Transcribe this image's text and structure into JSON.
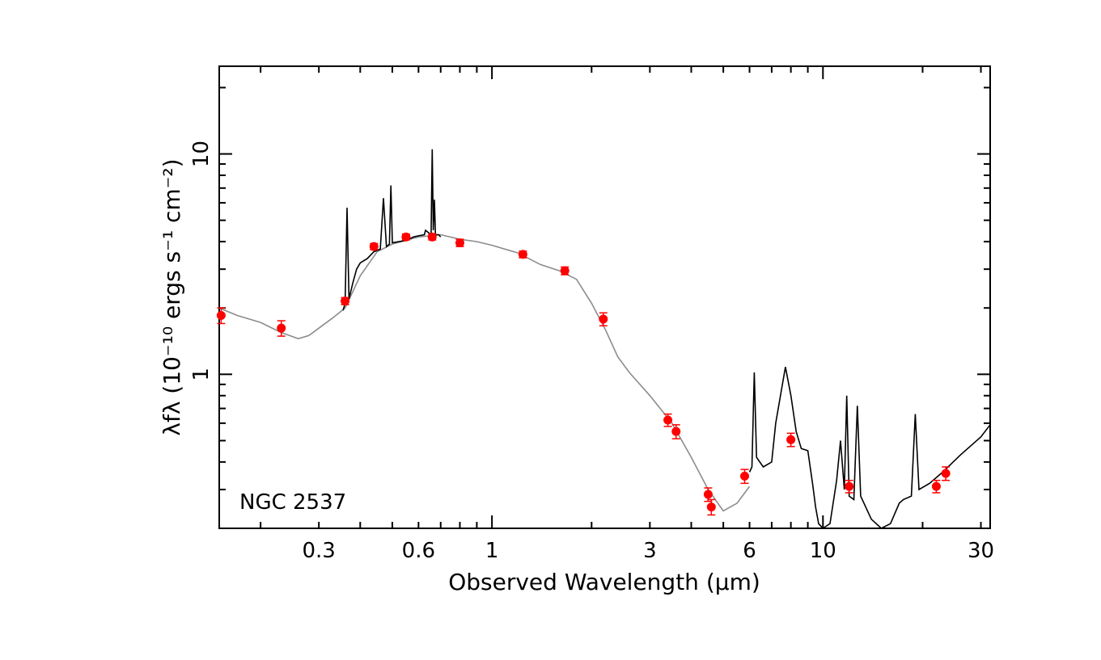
{
  "chart_data": {
    "type": "scatter",
    "title": "",
    "annotation": "NGC 2537",
    "xlabel": "Observed Wavelength (μm)",
    "ylabel": "λfλ (10⁻¹⁰ ergs s⁻¹ cm⁻²)",
    "x_scale": "log",
    "y_scale": "log",
    "xlim": [
      0.15,
      32
    ],
    "ylim": [
      0.2,
      25
    ],
    "x_tick_labels": [
      "0.3",
      "0.6",
      "1",
      "3",
      "6",
      "10",
      "30"
    ],
    "y_tick_labels": [
      "1",
      "10"
    ],
    "grid": false,
    "colors": {
      "photometry": "#ff0000",
      "model": "#8c8c8c",
      "spectrum": "#000000"
    },
    "series": [
      {
        "kind": "photometry",
        "points": [
          {
            "x": 0.152,
            "y": 1.85,
            "err": 0.15
          },
          {
            "x": 0.231,
            "y": 1.62,
            "err": 0.13
          },
          {
            "x": 0.36,
            "y": 2.15,
            "err": 0.08
          },
          {
            "x": 0.44,
            "y": 3.8,
            "err": 0.12
          },
          {
            "x": 0.55,
            "y": 4.2,
            "err": 0.13
          },
          {
            "x": 0.66,
            "y": 4.2,
            "err": 0.13
          },
          {
            "x": 0.8,
            "y": 3.95,
            "err": 0.15
          },
          {
            "x": 1.24,
            "y": 3.5,
            "err": 0.12
          },
          {
            "x": 1.66,
            "y": 2.95,
            "err": 0.12
          },
          {
            "x": 2.17,
            "y": 1.78,
            "err": 0.12
          },
          {
            "x": 3.4,
            "y": 0.62,
            "err": 0.04
          },
          {
            "x": 3.6,
            "y": 0.55,
            "err": 0.04
          },
          {
            "x": 4.5,
            "y": 0.285,
            "err": 0.02
          },
          {
            "x": 4.6,
            "y": 0.25,
            "err": 0.02
          },
          {
            "x": 5.8,
            "y": 0.345,
            "err": 0.025
          },
          {
            "x": 8.0,
            "y": 0.505,
            "err": 0.035
          },
          {
            "x": 12.0,
            "y": 0.31,
            "err": 0.02
          },
          {
            "x": 22.0,
            "y": 0.31,
            "err": 0.02
          },
          {
            "x": 23.5,
            "y": 0.355,
            "err": 0.025
          }
        ]
      },
      {
        "kind": "model",
        "points": [
          [
            0.15,
            2.0
          ],
          [
            0.17,
            1.85
          ],
          [
            0.2,
            1.72
          ],
          [
            0.23,
            1.55
          ],
          [
            0.26,
            1.45
          ],
          [
            0.28,
            1.5
          ],
          [
            0.3,
            1.62
          ],
          [
            0.33,
            1.8
          ],
          [
            0.36,
            2.0
          ],
          [
            0.4,
            2.8
          ],
          [
            0.45,
            3.6
          ],
          [
            0.5,
            3.9
          ],
          [
            0.6,
            4.2
          ],
          [
            0.7,
            4.3
          ],
          [
            0.8,
            4.1
          ],
          [
            0.9,
            4.0
          ],
          [
            1.0,
            3.85
          ],
          [
            1.2,
            3.55
          ],
          [
            1.4,
            3.15
          ],
          [
            1.6,
            2.95
          ],
          [
            1.8,
            2.7
          ],
          [
            2.0,
            2.1
          ],
          [
            2.2,
            1.6
          ],
          [
            2.4,
            1.2
          ],
          [
            2.6,
            1.02
          ],
          [
            3.0,
            0.8
          ],
          [
            3.5,
            0.6
          ],
          [
            4.0,
            0.42
          ],
          [
            4.5,
            0.3
          ],
          [
            5.0,
            0.24
          ],
          [
            5.5,
            0.26
          ],
          [
            6.0,
            0.31
          ]
        ]
      },
      {
        "kind": "spectrum",
        "points": [
          [
            0.355,
            1.95
          ],
          [
            0.36,
            2.1
          ],
          [
            0.365,
            5.7
          ],
          [
            0.37,
            2.2
          ],
          [
            0.38,
            2.6
          ],
          [
            0.39,
            3.0
          ],
          [
            0.4,
            3.2
          ],
          [
            0.42,
            3.35
          ],
          [
            0.44,
            3.6
          ],
          [
            0.46,
            3.7
          ],
          [
            0.47,
            6.3
          ],
          [
            0.48,
            3.8
          ],
          [
            0.49,
            3.9
          ],
          [
            0.495,
            7.2
          ],
          [
            0.5,
            3.95
          ],
          [
            0.55,
            4.05
          ],
          [
            0.58,
            4.2
          ],
          [
            0.6,
            4.25
          ],
          [
            0.625,
            4.3
          ],
          [
            0.63,
            4.5
          ],
          [
            0.655,
            4.3
          ],
          [
            0.66,
            10.5
          ],
          [
            0.665,
            4.5
          ],
          [
            0.67,
            6.2
          ],
          [
            0.675,
            4.3
          ],
          [
            0.69,
            4.3
          ],
          [
            0.7,
            4.2
          ],
          [
            6.0,
            0.36
          ],
          [
            6.1,
            0.38
          ],
          [
            6.2,
            1.02
          ],
          [
            6.3,
            0.42
          ],
          [
            6.6,
            0.38
          ],
          [
            7.0,
            0.4
          ],
          [
            7.2,
            0.6
          ],
          [
            7.7,
            1.08
          ],
          [
            8.0,
            0.8
          ],
          [
            8.3,
            0.55
          ],
          [
            8.6,
            0.46
          ],
          [
            9.0,
            0.45
          ],
          [
            9.3,
            0.32
          ],
          [
            9.5,
            0.25
          ],
          [
            9.7,
            0.21
          ],
          [
            10.0,
            0.2
          ],
          [
            10.5,
            0.21
          ],
          [
            11.0,
            0.33
          ],
          [
            11.3,
            0.5
          ],
          [
            11.6,
            0.3
          ],
          [
            11.8,
            0.8
          ],
          [
            12.0,
            0.28
          ],
          [
            12.4,
            0.27
          ],
          [
            12.7,
            0.72
          ],
          [
            13.0,
            0.28
          ],
          [
            14.0,
            0.22
          ],
          [
            15.0,
            0.2
          ],
          [
            16.0,
            0.21
          ],
          [
            17.0,
            0.26
          ],
          [
            17.5,
            0.27
          ],
          [
            18.5,
            0.28
          ],
          [
            19.0,
            0.66
          ],
          [
            19.5,
            0.3
          ],
          [
            21.0,
            0.32
          ],
          [
            23.0,
            0.36
          ],
          [
            26.0,
            0.43
          ],
          [
            30.0,
            0.52
          ],
          [
            32.0,
            0.59
          ]
        ]
      }
    ]
  }
}
